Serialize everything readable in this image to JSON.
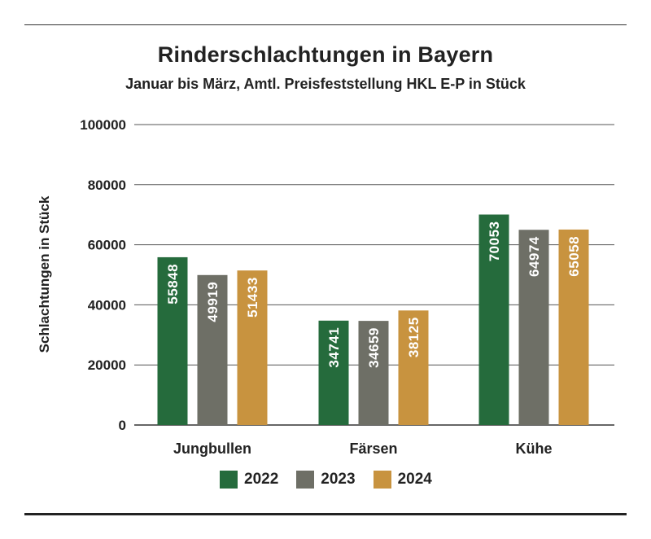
{
  "chart_data": {
    "type": "bar",
    "title": "Rinderschlachtungen in Bayern",
    "subtitle": "Januar bis März, Amtl. Preisfeststellung HKL E-P in Stück",
    "xlabel": "",
    "ylabel": "Schlachtungen in Stück",
    "ylim": [
      0,
      100000
    ],
    "yticks": [
      "0",
      "20000",
      "40000",
      "60000",
      "80000",
      "100000"
    ],
    "ytick_values": [
      0,
      20000,
      40000,
      60000,
      80000,
      100000
    ],
    "grid": true,
    "legend_position": "bottom",
    "categories": [
      "Jungbullen",
      "Färsen",
      "Kühe"
    ],
    "series": [
      {
        "name": "2022",
        "color": "#256b3c",
        "values": [
          55848,
          34741,
          70053
        ],
        "labels": [
          "55848",
          "34741",
          "70053"
        ]
      },
      {
        "name": "2023",
        "color": "#6e6f66",
        "values": [
          49919,
          34659,
          64974
        ],
        "labels": [
          "49919",
          "34659",
          "64974"
        ]
      },
      {
        "name": "2024",
        "color": "#c8933f",
        "values": [
          51433,
          38125,
          65058
        ],
        "labels": [
          "51433",
          "38125",
          "65058"
        ]
      }
    ]
  }
}
